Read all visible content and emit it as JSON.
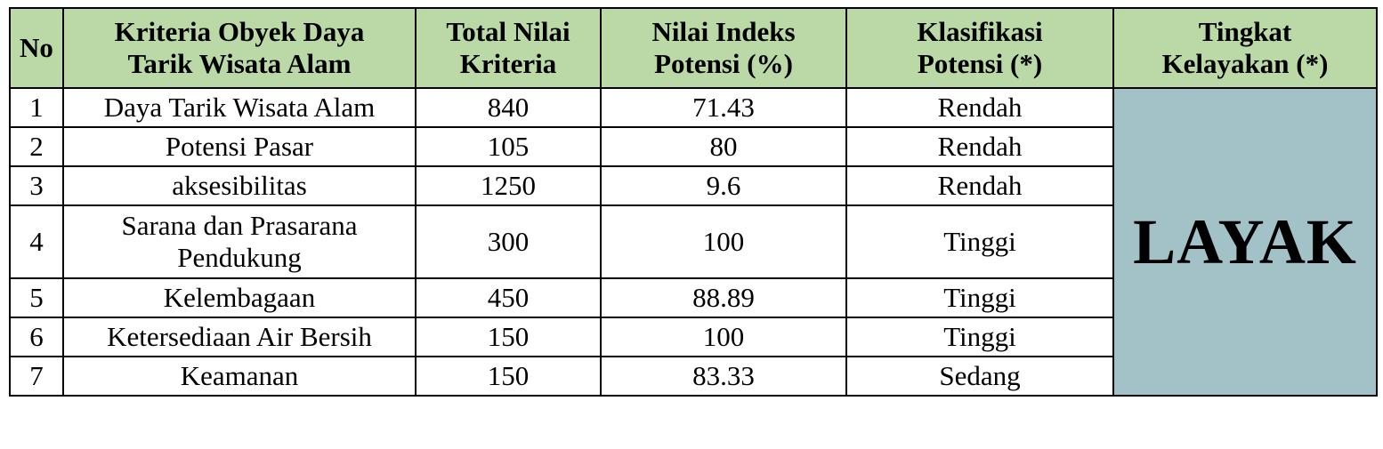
{
  "table": {
    "headers": {
      "no": "No",
      "criteria": [
        "Kriteria Obyek Daya",
        "Tarik Wisata Alam"
      ],
      "total": [
        "Total Nilai",
        "Kriteria"
      ],
      "index": [
        "Nilai Indeks",
        "Potensi (%)"
      ],
      "classification": [
        "Klasifikasi",
        "Potensi (*)"
      ],
      "feasibility": [
        "Tingkat",
        "Kelayakan (*)"
      ]
    },
    "rows": [
      {
        "no": "1",
        "criteria": [
          "Daya Tarik Wisata Alam"
        ],
        "total": "840",
        "index": "71.43",
        "classification": "Rendah"
      },
      {
        "no": "2",
        "criteria": [
          "Potensi Pasar"
        ],
        "total": "105",
        "index": "80",
        "classification": "Rendah"
      },
      {
        "no": "3",
        "criteria": [
          "aksesibilitas"
        ],
        "total": "1250",
        "index": "9.6",
        "classification": "Rendah"
      },
      {
        "no": "4",
        "criteria": [
          "Sarana dan Prasarana",
          "Pendukung"
        ],
        "total": "300",
        "index": "100",
        "classification": "Tinggi"
      },
      {
        "no": "5",
        "criteria": [
          "Kelembagaan"
        ],
        "total": "450",
        "index": "88.89",
        "classification": "Tinggi"
      },
      {
        "no": "6",
        "criteria": [
          "Ketersediaan Air Bersih"
        ],
        "total": "150",
        "index": "100",
        "classification": "Tinggi"
      },
      {
        "no": "7",
        "criteria": [
          "Keamanan"
        ],
        "total": "150",
        "index": "83.33",
        "classification": "Sedang"
      }
    ],
    "feasibility_value": "LAYAK"
  },
  "colors": {
    "header_bg": "#bad9a6",
    "feasibility_bg": "#a3c2c8",
    "border": "#000000"
  }
}
